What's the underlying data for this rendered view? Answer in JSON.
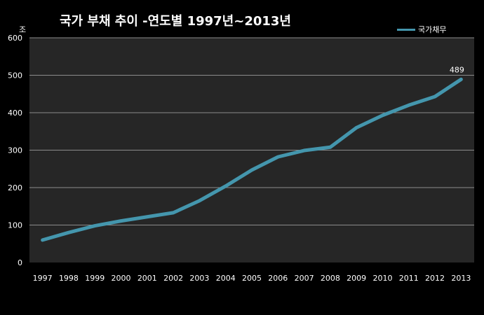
{
  "chart_data": {
    "type": "line",
    "title": "국가 부채 추이 -연도별 1997년~2013년",
    "ylabel": "조",
    "xlabel": "",
    "categories": [
      "1997",
      "1998",
      "1999",
      "2000",
      "2001",
      "2002",
      "2003",
      "2004",
      "2005",
      "2006",
      "2007",
      "2008",
      "2009",
      "2010",
      "2011",
      "2012",
      "2013"
    ],
    "series": [
      {
        "name": "국가채무",
        "values": [
          60,
          80,
          98,
          111,
          122,
          133,
          165,
          204,
          247,
          282,
          299,
          308,
          360,
          393,
          420,
          443,
          489
        ]
      }
    ],
    "ylim": [
      0,
      600
    ],
    "yticks": [
      0,
      100,
      200,
      300,
      400,
      500,
      600
    ],
    "data_labels": [
      {
        "category": "2013",
        "text": "489"
      }
    ],
    "grid": true,
    "legend_position": "top-right",
    "colors": {
      "background": "#000000",
      "plot_area": "#262626",
      "line": "#4496ad",
      "grid": "#8c8c8c",
      "text": "#ffffff"
    }
  }
}
